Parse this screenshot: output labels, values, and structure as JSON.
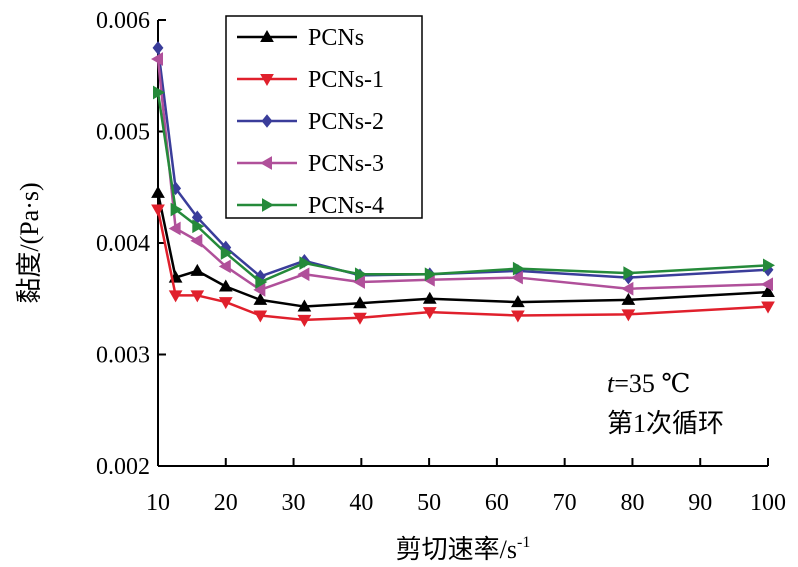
{
  "chart_data": {
    "type": "line",
    "x": [
      10,
      12.6,
      15.8,
      20,
      25.1,
      31.6,
      39.8,
      50.1,
      63.1,
      79.4,
      100
    ],
    "series": [
      {
        "name": "PCNs",
        "color": "#000000",
        "marker": "triangle-up",
        "values": [
          0.00445,
          0.00369,
          0.00375,
          0.00361,
          0.00349,
          0.00343,
          0.00346,
          0.0035,
          0.00347,
          0.00349,
          0.00356
        ]
      },
      {
        "name": "PCNs-1",
        "color": "#e0202c",
        "marker": "triangle-down",
        "values": [
          0.0043,
          0.00353,
          0.00353,
          0.00347,
          0.00335,
          0.00331,
          0.00333,
          0.00338,
          0.00335,
          0.00336,
          0.00343
        ]
      },
      {
        "name": "PCNs-2",
        "color": "#3a3d9a",
        "marker": "diamond",
        "values": [
          0.00575,
          0.00449,
          0.00423,
          0.00396,
          0.0037,
          0.00384,
          0.00371,
          0.00372,
          0.00375,
          0.00369,
          0.00376
        ]
      },
      {
        "name": "PCNs-3",
        "color": "#b0509a",
        "marker": "triangle-left",
        "values": [
          0.00565,
          0.00413,
          0.00402,
          0.00379,
          0.00358,
          0.00372,
          0.00365,
          0.00367,
          0.00369,
          0.00359,
          0.00363
        ]
      },
      {
        "name": "PCNs-4",
        "color": "#258a3a",
        "marker": "triangle-right",
        "values": [
          0.00535,
          0.0043,
          0.00415,
          0.00391,
          0.00365,
          0.00382,
          0.00372,
          0.00372,
          0.00377,
          0.00373,
          0.0038
        ]
      }
    ],
    "xlim": [
      10,
      100
    ],
    "ylim": [
      0.002,
      0.006
    ],
    "xticks": [
      "10",
      "20",
      "30",
      "40",
      "50",
      "60",
      "70",
      "80",
      "90",
      "100"
    ],
    "yticks": [
      "0.002",
      "0.003",
      "0.004",
      "0.005",
      "0.006"
    ],
    "xlabel": "剪切速率/s",
    "xlabel_sup": "-1",
    "ylabel": "黏度/(Pa·s)",
    "annotation": {
      "t_symbol": "t",
      "temperature": "=35 ℃",
      "cycle": "第1次循环"
    },
    "legend_position": "top-left",
    "grid": false,
    "title": ""
  }
}
